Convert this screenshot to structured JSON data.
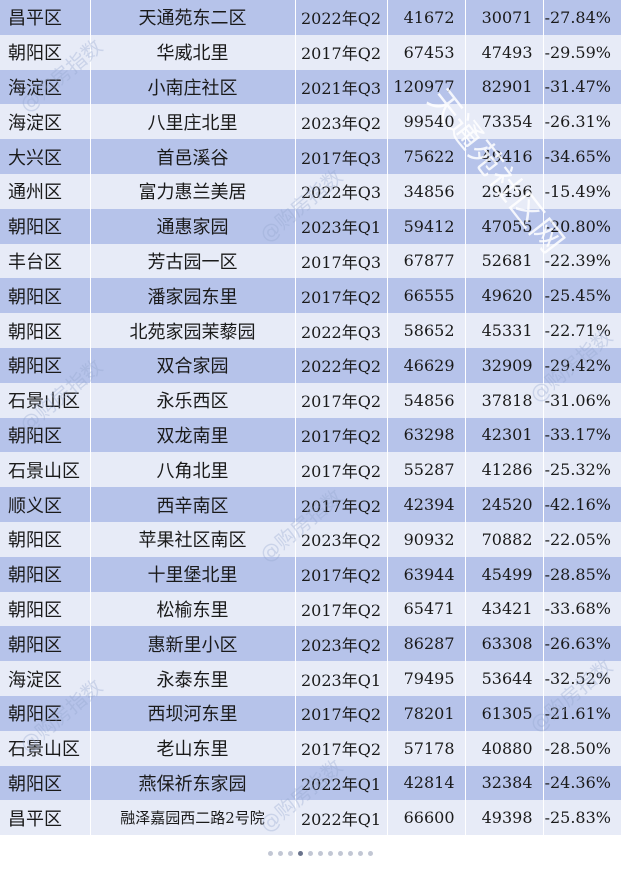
{
  "table": {
    "rows": [
      {
        "district": "昌平区",
        "community": "天通苑东二区",
        "period": "2022年Q2",
        "peak": "41672",
        "current": "30071",
        "change": "-27.84%"
      },
      {
        "district": "朝阳区",
        "community": "华威北里",
        "period": "2017年Q2",
        "peak": "67453",
        "current": "47493",
        "change": "-29.59%"
      },
      {
        "district": "海淀区",
        "community": "小南庄社区",
        "period": "2021年Q3",
        "peak": "120977",
        "current": "82901",
        "change": "-31.47%"
      },
      {
        "district": "海淀区",
        "community": "八里庄北里",
        "period": "2023年Q2",
        "peak": "99540",
        "current": "73354",
        "change": "-26.31%"
      },
      {
        "district": "大兴区",
        "community": "首邑溪谷",
        "period": "2017年Q3",
        "peak": "75622",
        "current": "49416",
        "change": "-34.65%"
      },
      {
        "district": "通州区",
        "community": "富力惠兰美居",
        "period": "2022年Q3",
        "peak": "34856",
        "current": "29456",
        "change": "-15.49%"
      },
      {
        "district": "朝阳区",
        "community": "通惠家园",
        "period": "2023年Q1",
        "peak": "59412",
        "current": "47055",
        "change": "-20.80%"
      },
      {
        "district": "丰台区",
        "community": "芳古园一区",
        "period": "2017年Q3",
        "peak": "67877",
        "current": "52681",
        "change": "-22.39%"
      },
      {
        "district": "朝阳区",
        "community": "潘家园东里",
        "period": "2017年Q2",
        "peak": "66555",
        "current": "49620",
        "change": "-25.45%"
      },
      {
        "district": "朝阳区",
        "community": "北苑家园茉藜园",
        "period": "2022年Q3",
        "peak": "58652",
        "current": "45331",
        "change": "-22.71%"
      },
      {
        "district": "朝阳区",
        "community": "双合家园",
        "period": "2022年Q2",
        "peak": "46629",
        "current": "32909",
        "change": "-29.42%"
      },
      {
        "district": "石景山区",
        "community": "永乐西区",
        "period": "2017年Q2",
        "peak": "54856",
        "current": "37818",
        "change": "-31.06%"
      },
      {
        "district": "朝阳区",
        "community": "双龙南里",
        "period": "2017年Q2",
        "peak": "63298",
        "current": "42301",
        "change": "-33.17%"
      },
      {
        "district": "石景山区",
        "community": "八角北里",
        "period": "2017年Q2",
        "peak": "55287",
        "current": "41286",
        "change": "-25.32%"
      },
      {
        "district": "顺义区",
        "community": "西辛南区",
        "period": "2017年Q2",
        "peak": "42394",
        "current": "24520",
        "change": "-42.16%"
      },
      {
        "district": "朝阳区",
        "community": "苹果社区南区",
        "period": "2023年Q2",
        "peak": "90932",
        "current": "70882",
        "change": "-22.05%"
      },
      {
        "district": "朝阳区",
        "community": "十里堡北里",
        "period": "2017年Q2",
        "peak": "63944",
        "current": "45499",
        "change": "-28.85%"
      },
      {
        "district": "朝阳区",
        "community": "松榆东里",
        "period": "2017年Q2",
        "peak": "65471",
        "current": "43421",
        "change": "-33.68%"
      },
      {
        "district": "朝阳区",
        "community": "惠新里小区",
        "period": "2023年Q2",
        "peak": "86287",
        "current": "63308",
        "change": "-26.63%"
      },
      {
        "district": "海淀区",
        "community": "永泰东里",
        "period": "2023年Q1",
        "peak": "79495",
        "current": "53644",
        "change": "-32.52%"
      },
      {
        "district": "朝阳区",
        "community": "西坝河东里",
        "period": "2017年Q2",
        "peak": "78201",
        "current": "61305",
        "change": "-21.61%"
      },
      {
        "district": "石景山区",
        "community": "老山东里",
        "period": "2017年Q2",
        "peak": "57178",
        "current": "40880",
        "change": "-28.50%"
      },
      {
        "district": "朝阳区",
        "community": "燕保祈东家园",
        "period": "2022年Q1",
        "peak": "42814",
        "current": "32384",
        "change": "-24.36%"
      },
      {
        "district": "昌平区",
        "community": "融泽嘉园西二路2号院",
        "period": "2022年Q1",
        "peak": "66600",
        "current": "49398",
        "change": "-25.83%"
      }
    ]
  },
  "watermarks": {
    "main": "天通苑社区网",
    "repeat": "@购房指数"
  },
  "colors": {
    "row_odd": "#b6c3ea",
    "row_even": "#e7ebf7",
    "text": "#1a1a1a"
  }
}
